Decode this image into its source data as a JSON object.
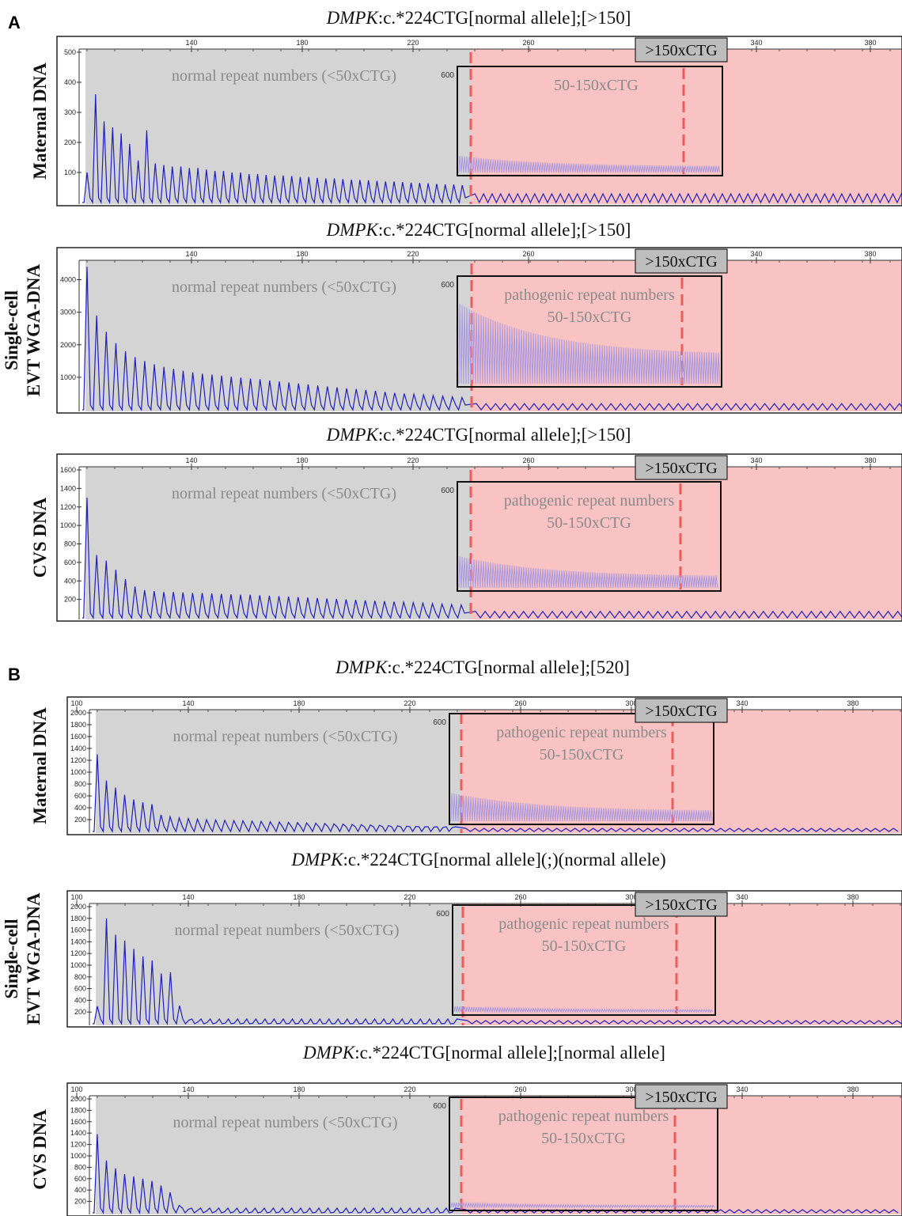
{
  "colors": {
    "normal_region": "#d4d4d4",
    "pathogenic_region": "#f9c3c3",
    "trace": "#1f1fc0",
    "inset_trace": "#a898e0",
    "dashed_marker": "#ef5b5b",
    "badge_fill": "#bdbdbd"
  },
  "chart_data": [
    {
      "type": "line",
      "panel": "A",
      "title_gene": "DMPK",
      "title_rest": ":c.*224CTG[normal allele];[>150]",
      "ylabel_lines": [
        "Maternal DNA"
      ],
      "x_ticks": [
        "140",
        "180",
        "220",
        "260",
        "340",
        "380"
      ],
      "y_ticks": [
        "100",
        "200",
        "300",
        "400",
        "500"
      ],
      "ymax": 500,
      "normal_region_label": "normal repeat numbers (<50xCTG)",
      "inset_label_lines": [
        "50-150xCTG"
      ],
      "inset_ytick": "600",
      "expansion_badge": ">150xCTG",
      "peaks": [
        100,
        360,
        270,
        250,
        230,
        195,
        140,
        240,
        130,
        125,
        120,
        120,
        115,
        115,
        110,
        105,
        105,
        100,
        100,
        95,
        95,
        92,
        90,
        90,
        88,
        85,
        85,
        82,
        80,
        80,
        78,
        76,
        75,
        74,
        72,
        70,
        70,
        68,
        66,
        65,
        64,
        62,
        60,
        60,
        58
      ],
      "inset_level": 0.18
    },
    {
      "type": "line",
      "panel": "A",
      "title_gene": "DMPK",
      "title_rest": ":c.*224CTG[normal allele];[>150]",
      "ylabel_lines": [
        "Single-cell",
        "EVT WGA-DNA"
      ],
      "x_ticks": [
        "140",
        "180",
        "220",
        "260",
        "340",
        "380"
      ],
      "y_ticks": [
        "1000",
        "2000",
        "3000",
        "4000"
      ],
      "ymax": 4500,
      "normal_region_label": "normal repeat numbers (<50xCTG)",
      "inset_label_lines": [
        "pathogenic repeat numbers",
        "50-150xCTG"
      ],
      "inset_ytick": "600",
      "expansion_badge": ">150xCTG",
      "peaks": [
        4400,
        2900,
        2400,
        2050,
        1800,
        1620,
        1500,
        1400,
        1320,
        1260,
        1200,
        1150,
        1110,
        1080,
        1050,
        1020,
        990,
        960,
        940,
        900,
        870,
        840,
        810,
        780,
        750,
        720,
        690,
        660,
        640,
        610,
        580,
        550,
        520,
        500,
        480,
        460,
        440,
        420,
        400,
        380
      ],
      "inset_level": 0.85
    },
    {
      "type": "line",
      "panel": "A",
      "title_gene": "DMPK",
      "title_rest": ":c.*224CTG[normal allele];[>150]",
      "ylabel_lines": [
        "CVS DNA"
      ],
      "x_ticks": [
        "140",
        "180",
        "220",
        "260",
        "340",
        "380"
      ],
      "y_ticks": [
        "200",
        "400",
        "600",
        "800",
        "1000",
        "1200",
        "1400",
        "1600"
      ],
      "ymax": 1600,
      "normal_region_label": "normal repeat numbers (<50xCTG)",
      "inset_label_lines": [
        "pathogenic repeat numbers",
        "50-150xCTG"
      ],
      "inset_ytick": "600",
      "expansion_badge": ">150xCTG",
      "peaks": [
        1300,
        680,
        620,
        520,
        420,
        340,
        300,
        290,
        280,
        280,
        275,
        270,
        270,
        265,
        260,
        255,
        250,
        250,
        245,
        240,
        235,
        230,
        225,
        220,
        215,
        210,
        205,
        200,
        195,
        190,
        185,
        180,
        175,
        170,
        165,
        160,
        155,
        150,
        145,
        140
      ],
      "inset_level": 0.34
    },
    {
      "type": "line",
      "panel": "B",
      "title_gene": "DMPK",
      "title_rest": ":c.*224CTG[normal allele];[520]",
      "ylabel_lines": [
        "Maternal DNA"
      ],
      "x_ticks": [
        "100",
        "140",
        "180",
        "220",
        "260",
        "300",
        "340",
        "380"
      ],
      "y_ticks": [
        "200",
        "400",
        "600",
        "800",
        "1000",
        "1200",
        "1400",
        "1600",
        "1800",
        "2000"
      ],
      "ymax": 2000,
      "normal_region_label": "normal repeat numbers (<50xCTG)",
      "inset_label_lines": [
        "pathogenic repeat numbers",
        "50-150xCTG"
      ],
      "inset_ytick": "600",
      "expansion_badge": ">150xCTG",
      "peaks": [
        1300,
        860,
        740,
        620,
        540,
        490,
        460,
        280,
        250,
        230,
        220,
        210,
        200,
        195,
        190,
        185,
        180,
        175,
        170,
        165,
        160,
        155,
        150,
        145,
        140,
        135,
        130,
        125,
        120,
        115,
        110,
        105,
        100,
        95,
        90,
        85,
        80,
        75,
        70,
        65
      ],
      "inset_level": 0.3
    },
    {
      "type": "line",
      "panel": "B",
      "title_gene": "DMPK",
      "title_rest": ":c.*224CTG[normal allele](;)(normal allele)",
      "ylabel_lines": [
        "Single-cell",
        "EVT WGA-DNA"
      ],
      "x_ticks": [
        "100",
        "140",
        "180",
        "220",
        "260",
        "300",
        "340",
        "380"
      ],
      "y_ticks": [
        "200",
        "400",
        "600",
        "800",
        "1000",
        "1200",
        "1400",
        "1600",
        "1800",
        "2000"
      ],
      "ymax": 2000,
      "normal_region_label": "normal repeat numbers (<50xCTG)",
      "inset_label_lines": [
        "pathogenic repeat numbers",
        "50-150xCTG"
      ],
      "inset_ytick": "600",
      "expansion_badge": ">150xCTG",
      "peaks": [
        300,
        1800,
        1520,
        1420,
        1280,
        1150,
        1080,
        860,
        880,
        310,
        60,
        30,
        20,
        15,
        10,
        10,
        8,
        8,
        6,
        6,
        5,
        5,
        5,
        4,
        4,
        4,
        3,
        3,
        3,
        3,
        3,
        3,
        3,
        3,
        3,
        3,
        3,
        3,
        3,
        3
      ],
      "inset_level": 0.06
    },
    {
      "type": "line",
      "panel": "B",
      "title_gene": "DMPK",
      "title_rest": ":c.*224CTG[normal allele];[normal allele]",
      "ylabel_lines": [
        "CVS DNA"
      ],
      "x_ticks": [
        "100",
        "140",
        "180",
        "220",
        "260",
        "300",
        "340",
        "380"
      ],
      "y_ticks": [
        "200",
        "400",
        "600",
        "800",
        "1000",
        "1200",
        "1400",
        "1600",
        "1800",
        "2000"
      ],
      "ymax": 2000,
      "normal_region_label": "normal repeat numbers (<50xCTG)",
      "inset_label_lines": [
        "pathogenic repeat numbers",
        "50-150xCTG"
      ],
      "inset_ytick": "600",
      "expansion_badge": ">150xCTG",
      "peaks": [
        1380,
        920,
        780,
        680,
        640,
        600,
        560,
        480,
        360,
        130,
        60,
        40,
        30,
        25,
        20,
        18,
        16,
        15,
        14,
        13,
        12,
        12,
        11,
        11,
        10,
        10,
        10,
        10,
        10,
        10,
        10,
        10,
        10,
        10,
        10,
        10,
        10,
        10,
        10,
        10
      ],
      "inset_level": 0.05
    }
  ],
  "panel_labels": [
    "A",
    "B"
  ]
}
